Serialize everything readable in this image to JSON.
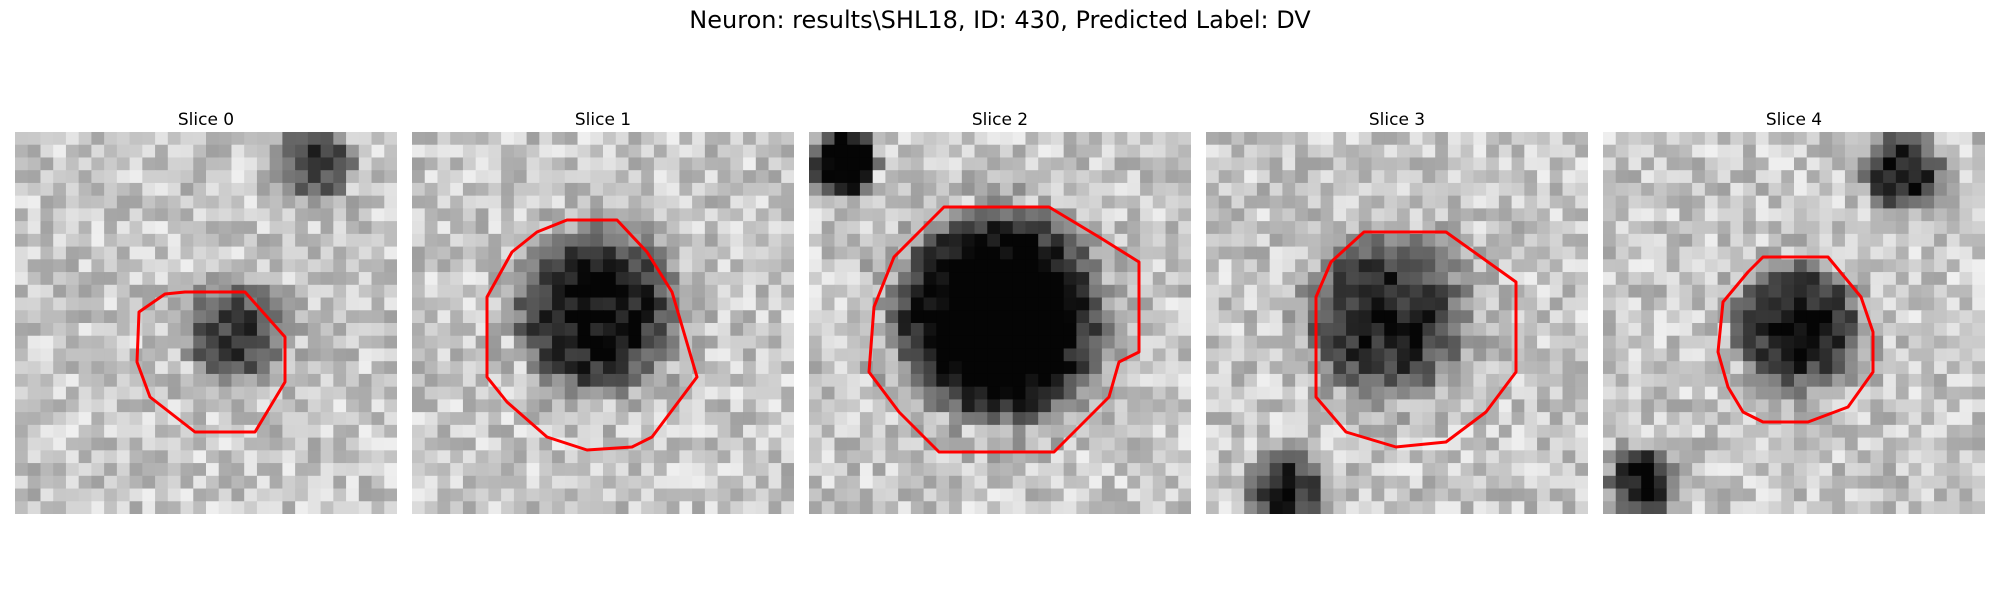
{
  "figure": {
    "title": "Neuron: results\\SHL18, ID: 430, Predicted Label: DV"
  },
  "panels": [
    {
      "title": "Slice 0",
      "seed": 11,
      "dark": 0.55,
      "cellBlur": 1.0
    },
    {
      "title": "Slice 1",
      "seed": 23,
      "dark": 0.75,
      "cellBlur": 0.9
    },
    {
      "title": "Slice 2",
      "seed": 37,
      "dark": 0.95,
      "cellBlur": 0.7
    },
    {
      "title": "Slice 3",
      "seed": 51,
      "dark": 0.65,
      "cellBlur": 0.9
    },
    {
      "title": "Slice 4",
      "seed": 67,
      "dark": 0.7,
      "cellBlur": 0.9
    }
  ],
  "colors": {
    "outline": "#ff0000",
    "background": "#ffffff"
  }
}
